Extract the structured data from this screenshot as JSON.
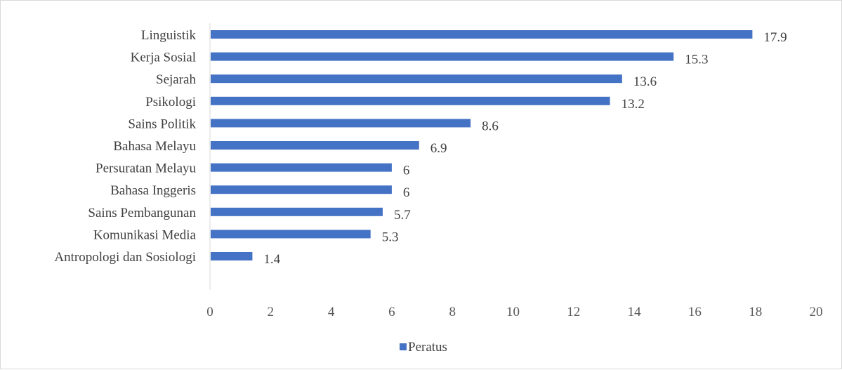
{
  "chart_data": {
    "type": "bar",
    "orientation": "horizontal",
    "categories": [
      "Linguistik",
      "Kerja Sosial",
      "Sejarah",
      "Psikologi",
      "Sains Politik",
      "Bahasa Melayu",
      "Persuratan Melayu",
      "Bahasa Inggeris",
      "Sains Pembangunan",
      "Komunikasi Media",
      "Antropologi dan Sosiologi"
    ],
    "series": [
      {
        "name": "Peratus",
        "values": [
          17.9,
          15.3,
          13.6,
          13.2,
          8.6,
          6.9,
          6,
          6,
          5.7,
          5.3,
          1.4
        ],
        "color": "#4472c4"
      }
    ],
    "data_labels": [
      "17.9",
      "15.3",
      "13.6",
      "13.2",
      "8.6",
      "6.9",
      "6",
      "6",
      "5.7",
      "5.3",
      "1.4"
    ],
    "xlim": [
      0,
      20
    ],
    "x_ticks": [
      "0",
      "2",
      "4",
      "6",
      "8",
      "10",
      "12",
      "14",
      "16",
      "18",
      "20"
    ],
    "grid": false,
    "legend_position": "bottom"
  }
}
